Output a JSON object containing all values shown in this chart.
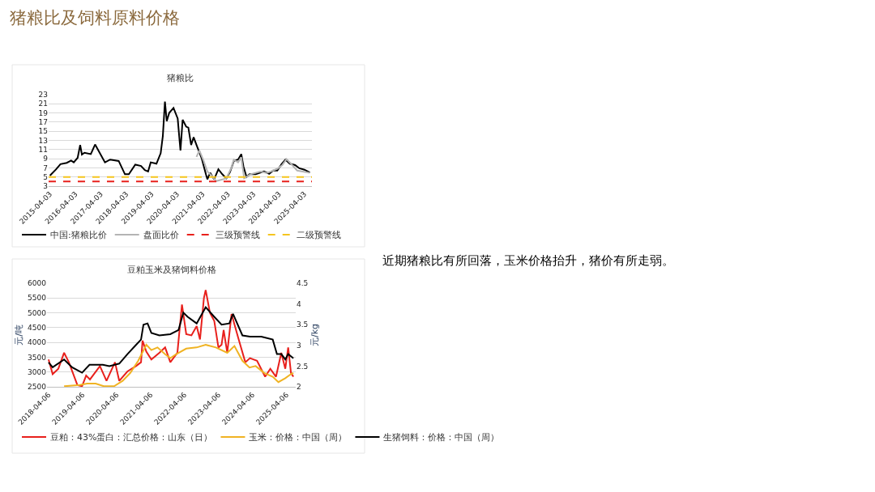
{
  "chart_data": [
    {
      "type": "other",
      "title": "猪粮比及饲料原料价格",
      "annotations": [
        "近期猪粮比有所回落，玉米价格抬升，猪价有所走弱。"
      ]
    },
    {
      "type": "line",
      "title": "猪粮比",
      "xlim": [
        "2015-03-15",
        "2025-07-20"
      ],
      "xticks": [
        "2015-04-03",
        "2016-04-03",
        "2017-04-03",
        "2018-04-03",
        "2019-04-03",
        "2020-04-03",
        "2021-04-03",
        "2022-04-03",
        "2023-04-03",
        "2024-04-03",
        "2025-04-03"
      ],
      "ylim": [
        3,
        23
      ],
      "yticks": [
        3,
        5,
        7,
        9,
        11,
        13,
        15,
        17,
        19,
        21,
        23
      ],
      "grid": "y",
      "legend": "bottom",
      "line_style": "solid",
      "marker": "none",
      "series": [
        {
          "name": "中国:猪粮比价",
          "color": "#000000",
          "x": [
            "2015-04-03",
            "2015-07-01",
            "2015-09-01",
            "2015-12-01",
            "2016-02-01",
            "2016-03-10",
            "2016-05-05",
            "2016-06-10",
            "2016-07-05",
            "2016-08-10",
            "2016-11-10",
            "2017-01-10",
            "2017-06-01",
            "2017-08-15",
            "2017-12-15",
            "2018-03-15",
            "2018-05-10",
            "2018-08-10",
            "2018-11-01",
            "2018-12-25",
            "2019-02-10",
            "2019-03-20",
            "2019-06-10",
            "2019-08-10",
            "2019-09-10",
            "2019-10-10",
            "2019-11-05",
            "2019-12-10",
            "2020-02-10",
            "2020-04-10",
            "2020-05-10",
            "2020-05-20",
            "2020-06-20",
            "2020-08-10",
            "2020-09-10",
            "2020-10-20",
            "2020-11-25",
            "2021-01-05",
            "2021-03-20",
            "2021-05-20",
            "2021-06-10",
            "2021-07-20",
            "2021-09-15",
            "2021-11-15",
            "2022-01-10",
            "2022-03-10",
            "2022-05-01",
            "2022-06-25",
            "2022-08-25",
            "2022-10-10",
            "2022-11-10",
            "2022-12-25",
            "2023-02-05",
            "2023-05-05",
            "2023-09-01",
            "2023-11-15",
            "2024-01-10",
            "2024-03-10",
            "2024-05-10",
            "2024-07-05",
            "2024-09-05",
            "2024-11-20",
            "2025-01-20",
            "2025-04-03",
            "2025-06-20"
          ],
          "values": [
            5.3,
            6.7,
            7.8,
            8.1,
            8.6,
            8.2,
            9.2,
            12.0,
            9.9,
            10.3,
            10.0,
            12.1,
            8.2,
            8.8,
            8.5,
            5.6,
            5.6,
            7.7,
            7.4,
            6.5,
            6.2,
            8.2,
            7.9,
            10.2,
            14.0,
            21.5,
            17.2,
            19.0,
            20.1,
            17.8,
            12.5,
            10.8,
            17.5,
            16.0,
            15.8,
            12.0,
            13.7,
            12.0,
            9.1,
            5.6,
            4.5,
            5.9,
            4.5,
            6.7,
            5.6,
            4.7,
            6.1,
            8.5,
            8.8,
            10.0,
            7.3,
            5.0,
            5.6,
            5.6,
            6.2,
            5.7,
            6.4,
            6.4,
            7.8,
            8.8,
            7.9,
            7.6,
            6.9,
            6.6,
            6.0
          ]
        },
        {
          "name": "盘面比价",
          "color": "#b4b4b4",
          "x": [
            "2021-01-05",
            "2021-02-15",
            "2021-04-10",
            "2021-06-10",
            "2021-08-10",
            "2021-10-15",
            "2022-03-10",
            "2022-05-20",
            "2022-06-25",
            "2022-08-25",
            "2022-10-10",
            "2022-11-20",
            "2023-02-20",
            "2023-07-10",
            "2023-10-10",
            "2023-12-10",
            "2024-03-10",
            "2024-05-20",
            "2024-07-20",
            "2024-10-10",
            "2024-12-20",
            "2025-03-10",
            "2025-06-20"
          ],
          "values": [
            9.4,
            10.8,
            8.8,
            6.2,
            5.3,
            4.1,
            4.7,
            7.0,
            8.8,
            8.2,
            9.3,
            4.7,
            5.6,
            6.2,
            5.9,
            6.2,
            6.8,
            7.6,
            8.9,
            7.6,
            6.4,
            6.2,
            5.9
          ]
        }
      ],
      "ref_lines": [
        {
          "axis": "y",
          "value": 4,
          "label": "三级预警线",
          "color": "#e8201c",
          "line_style": "dashed"
        },
        {
          "axis": "y",
          "value": 5,
          "label": "二级预警线",
          "color": "#f5c51e",
          "line_style": "dashed"
        }
      ]
    },
    {
      "type": "line",
      "title": "豆粕玉米及猪饲料价格",
      "ylabel": "元/吨",
      "y2label": "元/kg",
      "xlim": [
        "2018-03-20",
        "2025-07-15"
      ],
      "xticks": [
        "2018-04-06",
        "2019-04-06",
        "2020-04-06",
        "2021-04-06",
        "2022-04-06",
        "2023-04-06",
        "2024-04-06",
        "2025-04-06"
      ],
      "ylim": [
        2500,
        6000
      ],
      "yticks": [
        2500,
        3000,
        3500,
        4000,
        4500,
        5000,
        5500,
        6000
      ],
      "y2lim": [
        2,
        4.5
      ],
      "y2ticks": [
        2,
        2.5,
        3,
        3.5,
        4,
        4.5
      ],
      "grid": "y",
      "legend": "bottom",
      "line_style": "solid",
      "marker": "none",
      "series": [
        {
          "name": "豆粕：43%蛋白：汇总价格：山东（日）",
          "color": "#e8201c",
          "x": [
            "2018-04-06",
            "2018-05-20",
            "2018-07-20",
            "2018-09-20",
            "2018-11-10",
            "2019-02-10",
            "2019-04-01",
            "2019-05-15",
            "2019-06-25",
            "2019-10-10",
            "2019-12-20",
            "2020-03-20",
            "2020-05-05",
            "2020-08-01",
            "2020-11-01",
            "2020-12-25",
            "2021-01-10",
            "2021-02-20",
            "2021-04-15",
            "2021-07-10",
            "2021-09-10",
            "2021-11-05",
            "2022-01-20",
            "2022-03-10",
            "2022-04-25",
            "2022-06-20",
            "2022-08-15",
            "2022-09-20",
            "2022-11-01",
            "2022-11-20",
            "2023-01-05",
            "2023-02-20",
            "2023-04-06",
            "2023-05-10",
            "2023-06-01",
            "2023-07-10",
            "2023-08-25",
            "2023-11-10",
            "2024-01-20",
            "2024-03-10",
            "2024-05-25",
            "2024-08-20",
            "2024-10-15",
            "2024-12-15",
            "2025-02-10",
            "2025-03-25",
            "2025-04-25",
            "2025-05-25",
            "2025-06-20"
          ],
          "values": [
            3420,
            2930,
            3110,
            3650,
            3330,
            2560,
            2520,
            2880,
            2750,
            3200,
            2700,
            3330,
            2700,
            3020,
            3200,
            3330,
            4060,
            3690,
            3420,
            3650,
            3830,
            3330,
            3650,
            5280,
            4280,
            4240,
            4550,
            4100,
            5500,
            5770,
            5000,
            4730,
            3830,
            3920,
            4420,
            3650,
            4960,
            4100,
            3330,
            3470,
            3380,
            2840,
            3110,
            2840,
            3650,
            3110,
            3830,
            2970,
            2840
          ]
        },
        {
          "name": "玉米：价格：中国（周）",
          "color": "#f0b323",
          "x": [
            "2018-09-20",
            "2019-03-10",
            "2019-05-25",
            "2019-08-25",
            "2019-11-20",
            "2020-03-10",
            "2020-06-10",
            "2020-09-01",
            "2020-11-25",
            "2021-02-20",
            "2021-04-15",
            "2021-06-20",
            "2021-09-10",
            "2021-11-05",
            "2022-01-05",
            "2022-04-25",
            "2022-08-15",
            "2022-11-20",
            "2023-03-10",
            "2023-07-10",
            "2023-09-25",
            "2023-12-20",
            "2024-03-05",
            "2024-05-10",
            "2024-08-10",
            "2024-11-10",
            "2025-01-10",
            "2025-03-25",
            "2025-05-25",
            "2025-06-20"
          ],
          "values": [
            2520,
            2560,
            2610,
            2610,
            2520,
            2520,
            2700,
            2970,
            3380,
            3920,
            3740,
            3830,
            3600,
            3470,
            3600,
            3790,
            3830,
            3920,
            3830,
            3650,
            3880,
            3380,
            3150,
            3200,
            2970,
            2840,
            2660,
            2790,
            2930,
            2970
          ]
        },
        {
          "name": "生猪饲料：价格：中国（周）",
          "color": "#000000",
          "axis": "y2",
          "x": [
            "2018-04-06",
            "2018-05-20",
            "2018-09-20",
            "2018-12-15",
            "2019-04-01",
            "2019-06-20",
            "2019-11-10",
            "2020-01-20",
            "2020-05-05",
            "2020-08-01",
            "2020-11-01",
            "2020-12-25",
            "2021-01-20",
            "2021-03-05",
            "2021-04-15",
            "2021-07-10",
            "2021-11-05",
            "2022-02-01",
            "2022-03-25",
            "2022-05-10",
            "2022-08-15",
            "2022-11-20",
            "2023-02-20",
            "2023-05-10",
            "2023-08-01",
            "2023-09-10",
            "2023-12-20",
            "2024-03-10",
            "2024-07-10",
            "2024-11-10",
            "2024-12-25",
            "2025-02-10",
            "2025-03-25",
            "2025-04-25",
            "2025-06-20"
          ],
          "values": [
            2.59,
            2.47,
            2.66,
            2.47,
            2.34,
            2.53,
            2.53,
            2.5,
            2.56,
            2.79,
            3.01,
            3.14,
            3.5,
            3.53,
            3.3,
            3.24,
            3.27,
            3.37,
            3.79,
            3.69,
            3.53,
            3.92,
            3.69,
            3.5,
            3.53,
            3.76,
            3.24,
            3.21,
            3.21,
            3.14,
            2.79,
            2.79,
            2.66,
            2.79,
            2.69
          ]
        }
      ]
    }
  ]
}
